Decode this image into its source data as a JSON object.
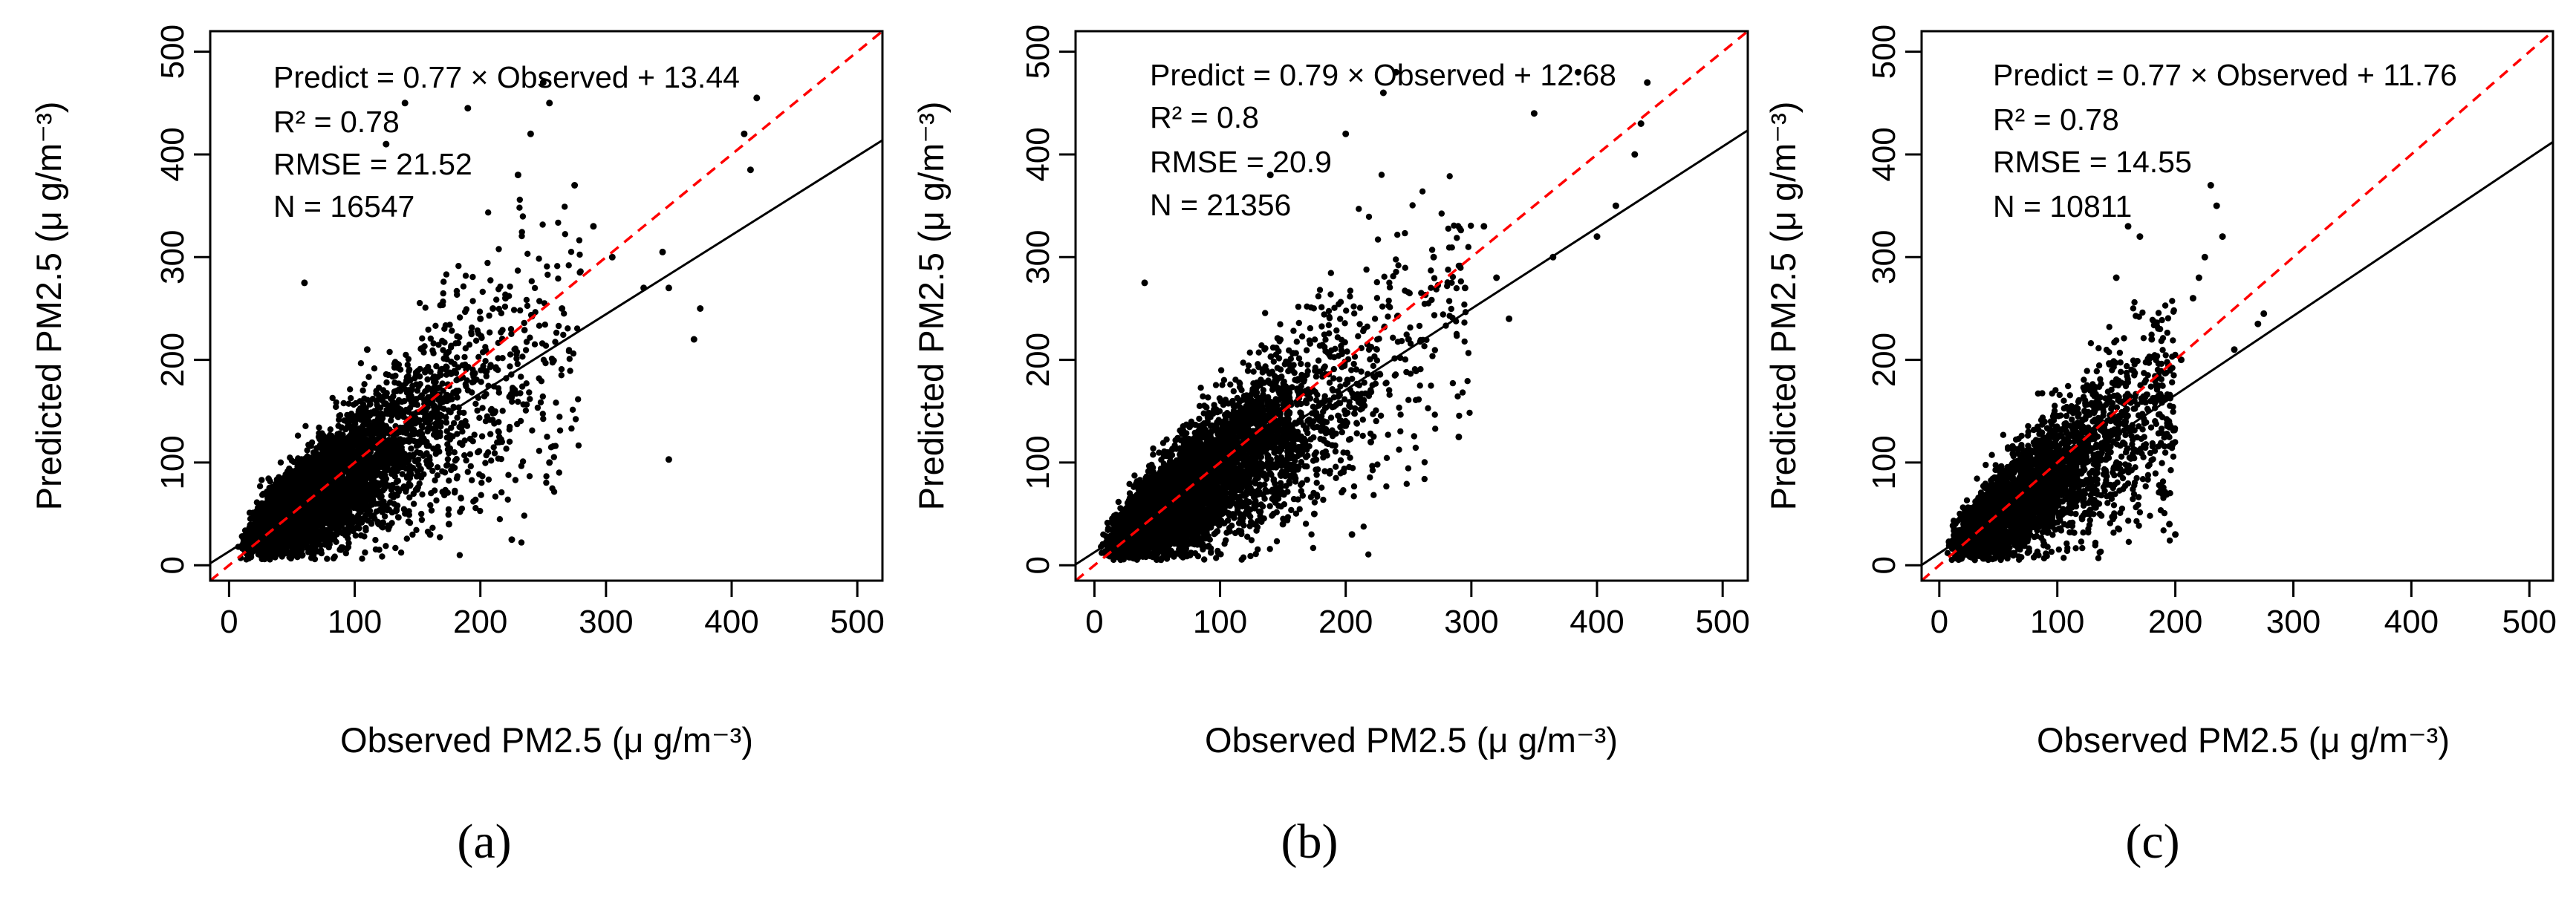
{
  "figure": {
    "panels": [
      {
        "label": "(a)"
      },
      {
        "label": "(b)"
      },
      {
        "label": "(c)"
      }
    ]
  },
  "colors": {
    "points": "#000000",
    "fit_line": "#000000",
    "identity_line": "#ff0000"
  },
  "chart_data": [
    {
      "type": "scatter",
      "title": "",
      "xlabel": "Observed PM2.5 (μ g/m⁻³)",
      "ylabel": "Predicted PM2.5 (μ g/m⁻³)",
      "xlim": [
        -15,
        520
      ],
      "ylim": [
        -15,
        520
      ],
      "x_ticks": [
        0,
        100,
        200,
        300,
        400,
        500
      ],
      "y_ticks": [
        0,
        100,
        200,
        300,
        400,
        500
      ],
      "grid": false,
      "legend": "none",
      "annotations": [
        "Predict = 0.77 × Observed + 13.44",
        "R² = 0.78",
        "RMSE = 21.52",
        "N = 16547"
      ],
      "fit_line": {
        "slope": 0.77,
        "intercept": 13.44,
        "style": "solid"
      },
      "identity_line": {
        "slope": 1,
        "intercept": 0,
        "style": "dashed"
      },
      "n_points": 16547,
      "point_cloud": {
        "core": {
          "x_range": [
            5,
            280
          ],
          "y_range": [
            5,
            380
          ],
          "density": "dense"
        },
        "sample_points": [
          [
            420,
            455
          ],
          [
            415,
            385
          ],
          [
            410,
            420
          ],
          [
            375,
            250
          ],
          [
            370,
            220
          ],
          [
            350,
            270
          ],
          [
            350,
            103
          ],
          [
            345,
            305
          ],
          [
            330,
            270
          ],
          [
            305,
            300
          ],
          [
            290,
            330
          ],
          [
            275,
            370
          ],
          [
            265,
            250
          ],
          [
            255,
            450
          ],
          [
            250,
            470
          ],
          [
            240,
            420
          ],
          [
            230,
            380
          ],
          [
            220,
            260
          ],
          [
            210,
            250
          ],
          [
            200,
            240
          ],
          [
            190,
            445
          ],
          [
            175,
            40
          ],
          [
            140,
            450
          ],
          [
            125,
            410
          ],
          [
            110,
            210
          ],
          [
            60,
            275
          ],
          [
            255,
            100
          ],
          [
            225,
            25
          ],
          [
            160,
            30
          ]
        ]
      }
    },
    {
      "type": "scatter",
      "title": "",
      "xlabel": "Observed PM2.5 (μ g/m⁻³)",
      "ylabel": "Predicted PM2.5 (μ g/m⁻³)",
      "xlim": [
        -15,
        520
      ],
      "ylim": [
        -15,
        520
      ],
      "x_ticks": [
        0,
        100,
        200,
        300,
        400,
        500
      ],
      "y_ticks": [
        0,
        100,
        200,
        300,
        400,
        500
      ],
      "grid": false,
      "legend": "none",
      "annotations": [
        "Predict = 0.79 × Observed + 12.68",
        "R² = 0.8",
        "RMSE = 20.9",
        "N = 21356"
      ],
      "fit_line": {
        "slope": 0.79,
        "intercept": 12.68,
        "style": "solid"
      },
      "identity_line": {
        "slope": 1,
        "intercept": 0,
        "style": "dashed"
      },
      "n_points": 21356,
      "point_cloud": {
        "core": {
          "x_range": [
            5,
            300
          ],
          "y_range": [
            5,
            400
          ],
          "density": "dense"
        },
        "sample_points": [
          [
            440,
            470
          ],
          [
            435,
            430
          ],
          [
            430,
            400
          ],
          [
            415,
            350
          ],
          [
            400,
            320
          ],
          [
            385,
            480
          ],
          [
            365,
            300
          ],
          [
            350,
            440
          ],
          [
            330,
            240
          ],
          [
            320,
            280
          ],
          [
            310,
            330
          ],
          [
            295,
            270
          ],
          [
            290,
            125
          ],
          [
            270,
            300
          ],
          [
            250,
            220
          ],
          [
            240,
            480
          ],
          [
            230,
            460
          ],
          [
            220,
            120
          ],
          [
            205,
            30
          ],
          [
            200,
            420
          ],
          [
            175,
            50
          ],
          [
            150,
            40
          ],
          [
            140,
            380
          ],
          [
            40,
            275
          ]
        ]
      }
    },
    {
      "type": "scatter",
      "title": "",
      "xlabel": "Observed PM2.5 (μ g/m⁻³)",
      "ylabel": "Predicted PM2.5 (μ g/m⁻³)",
      "xlim": [
        -15,
        520
      ],
      "ylim": [
        -15,
        520
      ],
      "x_ticks": [
        0,
        100,
        200,
        300,
        400,
        500
      ],
      "y_ticks": [
        0,
        100,
        200,
        300,
        400,
        500
      ],
      "grid": false,
      "legend": "none",
      "annotations": [
        "Predict = 0.77 × Observed + 11.76",
        "R² = 0.78",
        "RMSE = 14.55",
        "N = 10811"
      ],
      "fit_line": {
        "slope": 0.77,
        "intercept": 11.76,
        "style": "solid"
      },
      "identity_line": {
        "slope": 1,
        "intercept": 0,
        "style": "dashed"
      },
      "n_points": 10811,
      "point_cloud": {
        "core": {
          "x_range": [
            5,
            200
          ],
          "y_range": [
            5,
            260
          ],
          "density": "dense"
        },
        "sample_points": [
          [
            275,
            245
          ],
          [
            270,
            235
          ],
          [
            250,
            210
          ],
          [
            240,
            320
          ],
          [
            235,
            350
          ],
          [
            230,
            370
          ],
          [
            225,
            300
          ],
          [
            220,
            280
          ],
          [
            215,
            260
          ],
          [
            205,
            200
          ],
          [
            200,
            30
          ],
          [
            195,
            40
          ],
          [
            180,
            220
          ],
          [
            170,
            320
          ],
          [
            160,
            330
          ],
          [
            150,
            280
          ],
          [
            140,
            120
          ]
        ]
      }
    }
  ]
}
